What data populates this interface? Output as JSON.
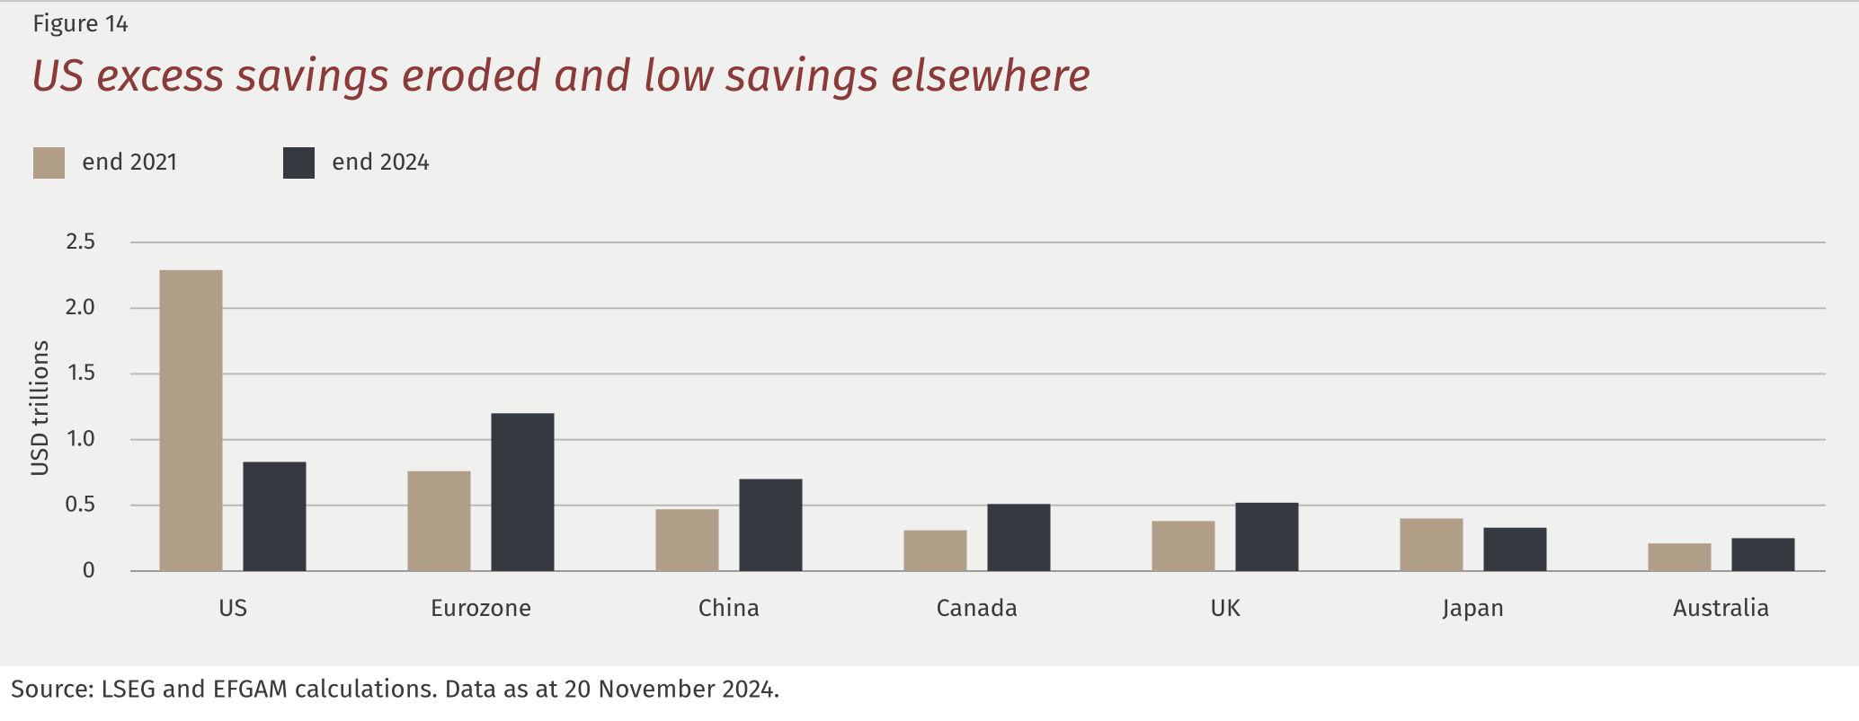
{
  "chart_data": {
    "type": "bar",
    "figure_label": "Figure 14",
    "title": "US excess savings eroded and low savings elsewhere",
    "y_label": "USD trillions",
    "source": "Source: LSEG and EFGAM calculations. Data as at 20 November 2024.",
    "categories": [
      "US",
      "Eurozone",
      "China",
      "Canada",
      "UK",
      "Japan",
      "Australia"
    ],
    "series": [
      {
        "name": "end 2021",
        "color": "#b09e89",
        "values": [
          2.29,
          0.76,
          0.47,
          0.31,
          0.38,
          0.4,
          0.21
        ]
      },
      {
        "name": "end 2024",
        "color": "#343a40",
        "values": [
          0.83,
          1.2,
          0.7,
          0.51,
          0.52,
          0.33,
          0.25
        ]
      }
    ],
    "ylim": [
      0,
      2.5
    ],
    "yticks": [
      0,
      0.5,
      {
        "value": 1,
        "label": "1.0"
      },
      1.5,
      {
        "value": 2,
        "label": "2.0"
      },
      2.5
    ],
    "grid": true
  }
}
